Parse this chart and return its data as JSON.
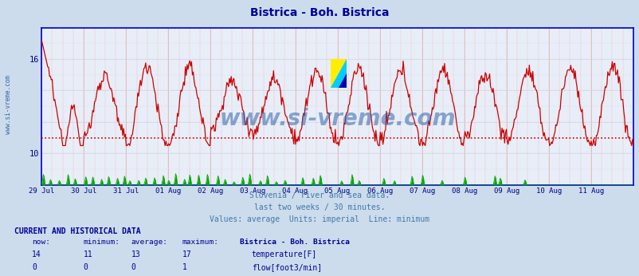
{
  "title": "Bistrica - Boh. Bistrica",
  "title_color": "#000099",
  "bg_color": "#ccdcec",
  "plot_bg_color": "#e8eef8",
  "grid_color_v": "#e8b0b0",
  "grid_color_h": "#d0d0e8",
  "axis_color": "#0000cc",
  "watermark_text": "www.si-vreme.com",
  "watermark_color": "#3366aa",
  "sidebar_text": "www.si-vreme.com",
  "sidebar_color": "#3366aa",
  "x_labels": [
    "29 Jul",
    "30 Jul",
    "31 Jul",
    "01 Aug",
    "02 Aug",
    "03 Aug",
    "04 Aug",
    "05 Aug",
    "06 Aug",
    "07 Aug",
    "08 Aug",
    "09 Aug",
    "10 Aug",
    "11 Aug"
  ],
  "x_label_color": "#000080",
  "y_min": 8.0,
  "y_max": 18.0,
  "y_ticks": [
    10,
    16
  ],
  "y_tick_color": "#000080",
  "min_line_value": 11.0,
  "min_line_color": "#cc0000",
  "temp_line_color": "#cc0000",
  "flow_color": "#00aa00",
  "subtitle_lines": [
    "Slovenia / river and sea data.",
    "last two weeks / 30 minutes.",
    "Values: average  Units: imperial  Line: minimum"
  ],
  "subtitle_color": "#4477aa",
  "table_header": "CURRENT AND HISTORICAL DATA",
  "table_header_color": "#000099",
  "col_headers": [
    "now:",
    "minimum:",
    "average:",
    "maximum:",
    "Bistrica - Boh. Bistrica"
  ],
  "temp_row": [
    "14",
    "11",
    "13",
    "17",
    "temperature[F]"
  ],
  "flow_row": [
    "0",
    "0",
    "0",
    "1",
    "flow[foot3/min]"
  ],
  "table_color": "#000099"
}
